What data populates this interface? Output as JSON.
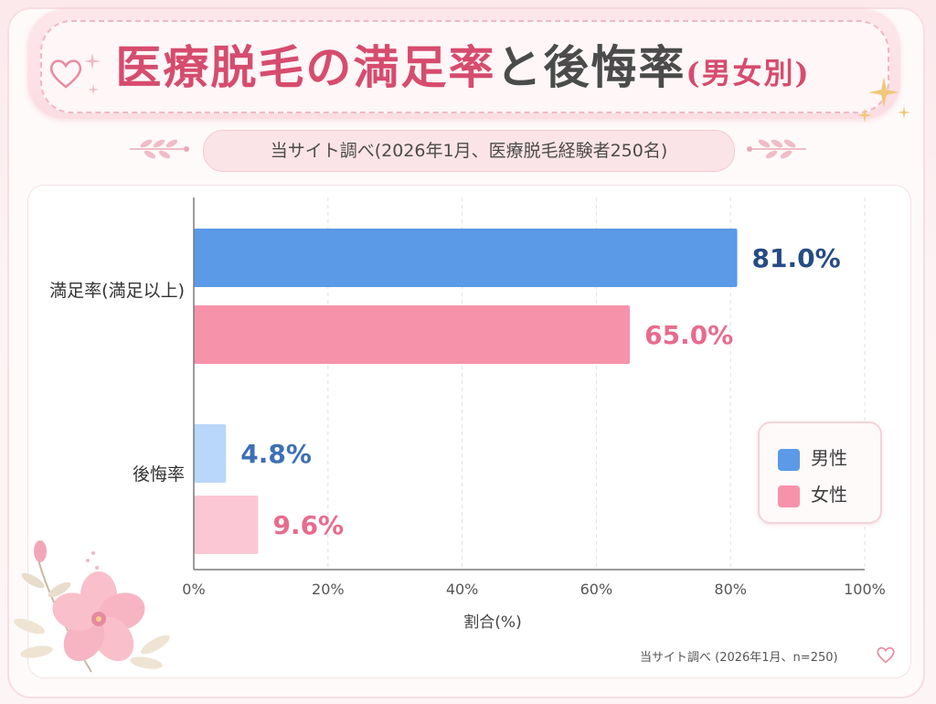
{
  "title": {
    "part1": "医療脱毛の満足率",
    "part2": "と後悔率",
    "part3": "(男女別)"
  },
  "subtitle": "当サイト調べ(2026年1月、医療脱毛経験者250名)",
  "footnote": "当サイト調べ (2026年1月、n=250)",
  "colors": {
    "male": "#5b9ae6",
    "female": "#f792ab",
    "male_light": "#b9d6fb",
    "female_light": "#fcc7d4",
    "male_label": "#264b85",
    "female_label": "#e86b8d",
    "regret_male_label": "#3d6fb6"
  },
  "chart_data": {
    "type": "bar",
    "orientation": "horizontal",
    "categories": [
      "満足率(満足以上)",
      "後悔率"
    ],
    "series": [
      {
        "name": "男性",
        "values": [
          81.0,
          4.8
        ]
      },
      {
        "name": "女性",
        "values": [
          65.0,
          9.6
        ]
      }
    ],
    "data_labels": [
      [
        "81.0%",
        "4.8%"
      ],
      [
        "65.0%",
        "9.6%"
      ]
    ],
    "x_ticks": [
      "0%",
      "20%",
      "40%",
      "60%",
      "80%",
      "100%"
    ],
    "xlabel": "割合(%)",
    "xlim": [
      0,
      100
    ],
    "grid": true,
    "legend": "bottom-right"
  }
}
